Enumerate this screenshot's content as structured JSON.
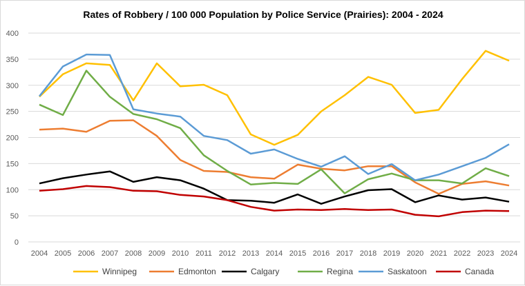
{
  "chart_data": {
    "type": "line",
    "title": "Rates of Robbery / 100 000 Population  by Police Service (Prairies): 2004 - 2024",
    "xlabel": "",
    "ylabel": "",
    "ylim": [
      0,
      400
    ],
    "yticks": [
      0,
      50,
      100,
      150,
      200,
      250,
      300,
      350,
      400
    ],
    "grid": true,
    "legend": "bottom",
    "x": [
      "2004",
      "2005",
      "2006",
      "2007",
      "2008",
      "2009",
      "2010",
      "2011",
      "2012",
      "2013",
      "2014",
      "2015",
      "2016",
      "2017",
      "2018",
      "2019",
      "2020",
      "2021",
      "2022",
      "2023",
      "2024"
    ],
    "series": [
      {
        "name": "Winnipeg",
        "color": "#FFC000",
        "values": [
          278,
          321,
          342,
          339,
          271,
          342,
          298,
          301,
          281,
          206,
          186,
          205,
          250,
          281,
          316,
          301,
          247,
          253,
          312,
          366,
          347
        ]
      },
      {
        "name": "Edmonton",
        "color": "#ED7D31",
        "values": [
          215,
          217,
          211,
          232,
          233,
          203,
          157,
          136,
          134,
          124,
          121,
          148,
          140,
          137,
          145,
          145,
          114,
          92,
          111,
          116,
          108
        ]
      },
      {
        "name": "Calgary",
        "color": "#000000",
        "values": [
          112,
          122,
          129,
          135,
          115,
          124,
          118,
          102,
          80,
          79,
          75,
          91,
          73,
          87,
          99,
          101,
          76,
          89,
          81,
          85,
          77
        ]
      },
      {
        "name": "Regina",
        "color": "#70AD47",
        "values": [
          263,
          243,
          328,
          278,
          245,
          235,
          218,
          166,
          136,
          110,
          113,
          111,
          139,
          93,
          120,
          131,
          118,
          118,
          112,
          141,
          126
        ]
      },
      {
        "name": "Saskatoon",
        "color": "#5B9BD5",
        "values": [
          279,
          336,
          359,
          358,
          254,
          246,
          240,
          203,
          195,
          169,
          177,
          159,
          144,
          164,
          130,
          149,
          118,
          129,
          145,
          161,
          187
        ]
      },
      {
        "name": "Canada",
        "color": "#C00000",
        "values": [
          98,
          101,
          107,
          105,
          98,
          97,
          90,
          87,
          80,
          67,
          60,
          62,
          61,
          63,
          61,
          62,
          52,
          49,
          57,
          60,
          59
        ]
      }
    ]
  }
}
